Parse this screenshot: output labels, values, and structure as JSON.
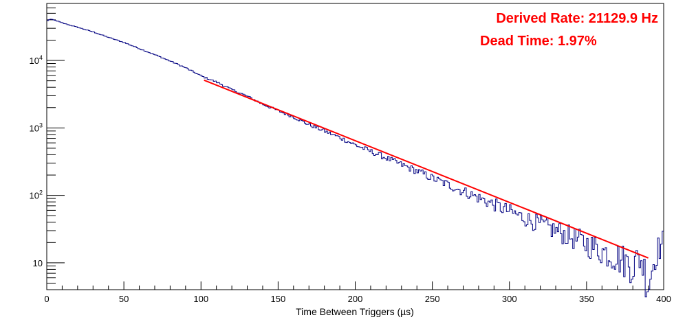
{
  "chart_data": {
    "type": "line",
    "title": "",
    "xlabel": "Time Between Triggers (µs)",
    "ylabel": "",
    "xlim": [
      0,
      400
    ],
    "ylim": [
      4,
      70000
    ],
    "yscale": "log",
    "grid": false,
    "legend": "none",
    "x_ticks": [
      "0",
      "50",
      "100",
      "150",
      "200",
      "250",
      "300",
      "350",
      "400"
    ],
    "y_ticks": [
      {
        "value": 10,
        "base": "10",
        "exp": ""
      },
      {
        "value": 100,
        "base": "10",
        "exp": "2"
      },
      {
        "value": 1000,
        "base": "10",
        "exp": "3"
      },
      {
        "value": 10000,
        "base": "10",
        "exp": "4"
      }
    ],
    "annotations": [
      "Derived Rate: 21129.9 Hz",
      "Dead Time: 1.97%"
    ],
    "series": [
      {
        "type": "histogram",
        "color": "#000080",
        "x": [
          0,
          2,
          4,
          6,
          10,
          20,
          30,
          40,
          50,
          60,
          70,
          80,
          90,
          100,
          110,
          120,
          130,
          140,
          150,
          160,
          170,
          180,
          190,
          200,
          210,
          220,
          230,
          240,
          250,
          260,
          270,
          280,
          290,
          300,
          310,
          320,
          330,
          340,
          350,
          360,
          370,
          380,
          385,
          390,
          395,
          400
        ],
        "values": [
          38000,
          41000,
          40000,
          39000,
          36000,
          31000,
          26500,
          22000,
          18500,
          15000,
          12200,
          9800,
          7800,
          5900,
          4800,
          3700,
          2950,
          2250,
          1800,
          1450,
          1120,
          900,
          720,
          560,
          450,
          360,
          285,
          230,
          180,
          145,
          115,
          92,
          73,
          58,
          46,
          37,
          30,
          24,
          19,
          15,
          12,
          9,
          12,
          5,
          14,
          21
        ]
      },
      {
        "type": "fit",
        "color": "#ff0000",
        "x": [
          102,
          390
        ],
        "values": [
          5100,
          11.8
        ]
      }
    ],
    "colors": {
      "annotation": "#ff0000",
      "axis": "#000000"
    }
  }
}
